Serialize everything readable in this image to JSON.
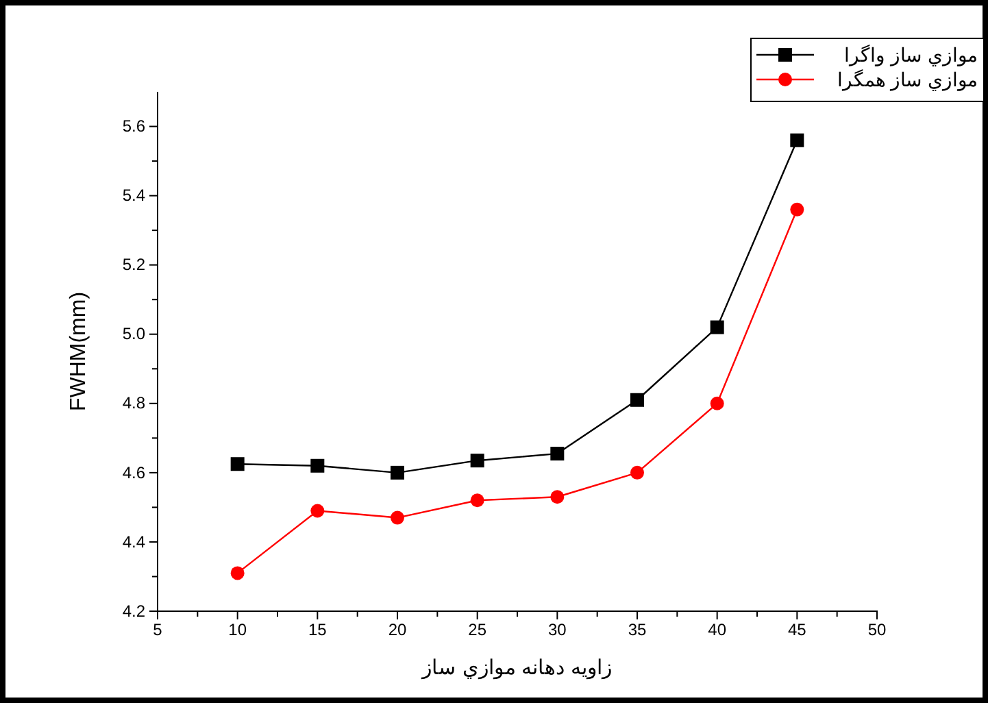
{
  "chart_data": {
    "type": "line",
    "xlabel": "زاويه دهانه موازي ساز",
    "ylabel": "FWHM(mm)",
    "x": [
      10,
      15,
      20,
      25,
      30,
      35,
      40,
      45
    ],
    "series": [
      {
        "name": "موازي ساز واگرا",
        "color": "#000000",
        "marker": "square",
        "values": [
          4.625,
          4.62,
          4.6,
          4.635,
          4.655,
          4.81,
          5.02,
          5.56
        ]
      },
      {
        "name": "موازي ساز همگرا",
        "color": "#ff0000",
        "marker": "circle",
        "values": [
          4.31,
          4.49,
          4.47,
          4.52,
          4.53,
          4.6,
          4.8,
          5.36
        ]
      }
    ],
    "xlim": [
      5,
      50
    ],
    "xticks": [
      5,
      {
        "value": 7.5,
        "label": null
      },
      10,
      {
        "value": 12.5,
        "label": null
      },
      15,
      {
        "value": 17.5,
        "label": null
      },
      20,
      {
        "value": 22.5,
        "label": null
      },
      25,
      {
        "value": 27.5,
        "label": null
      },
      30,
      {
        "value": 32.5,
        "label": null
      },
      35,
      {
        "value": 37.5,
        "label": null
      },
      40,
      {
        "value": 42.5,
        "label": null
      },
      45,
      {
        "value": 47.5,
        "label": null
      },
      50
    ],
    "ylim": [
      4.2,
      5.7
    ],
    "yticks": [
      4.2,
      {
        "value": 4.3,
        "label": null
      },
      4.4,
      {
        "value": 4.5,
        "label": null
      },
      4.6,
      {
        "value": 4.7,
        "label": null
      },
      4.8,
      {
        "value": 4.9,
        "label": null
      },
      {
        "value": 5,
        "label": "5.0"
      },
      {
        "value": 5.1,
        "label": null
      },
      5.2,
      {
        "value": 5.3,
        "label": null
      },
      5.4,
      {
        "value": 5.5,
        "label": null
      },
      5.6
    ],
    "grid": false,
    "legend": "top right",
    "line_style": "solid"
  }
}
